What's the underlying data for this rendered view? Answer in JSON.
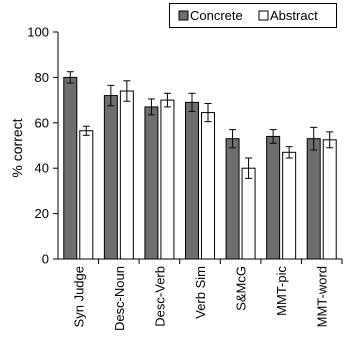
{
  "chart_data": {
    "type": "bar",
    "title": "",
    "xlabel": "",
    "ylabel": "% correct",
    "ylim": [
      0,
      100
    ],
    "yticks": [
      0,
      20,
      40,
      60,
      80,
      100
    ],
    "grid": false,
    "legend_position": "top-right",
    "categories": [
      "Syn Judge",
      "Desc-Noun",
      "Desc-Verb",
      "Verb Sim",
      "S&McG",
      "MMT-pic",
      "MMT-word"
    ],
    "series": [
      {
        "name": "Concrete",
        "color": "#6e6e6e",
        "values": [
          80,
          72,
          67,
          69,
          53,
          54,
          53
        ],
        "errors": [
          2.5,
          4.5,
          3.5,
          4,
          4,
          3,
          5
        ]
      },
      {
        "name": "Abstract",
        "color": "#ffffff",
        "values": [
          56.5,
          74,
          70,
          64.5,
          40,
          47,
          52.5
        ],
        "errors": [
          2,
          4.5,
          3,
          4,
          4.5,
          2.5,
          3.5
        ]
      }
    ]
  }
}
